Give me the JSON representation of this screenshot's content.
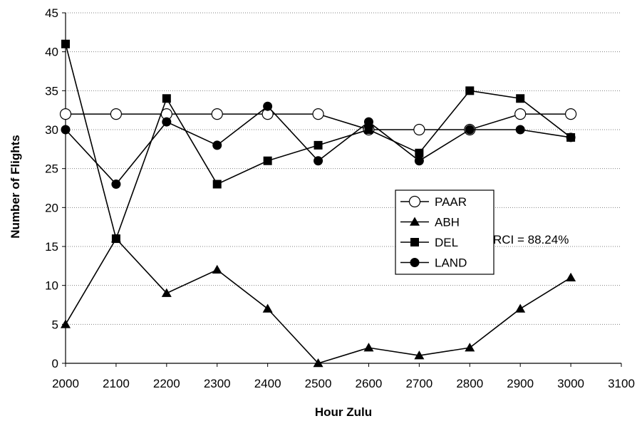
{
  "chart_data": {
    "type": "line",
    "title": "",
    "xlabel": "Hour Zulu",
    "ylabel": "Number of Flights",
    "xlim": [
      2000,
      3100
    ],
    "ylim": [
      0,
      45
    ],
    "xticks": [
      2000,
      2100,
      2200,
      2300,
      2400,
      2500,
      2600,
      2700,
      2800,
      2900,
      3000,
      3100
    ],
    "yticks": [
      0,
      5,
      10,
      15,
      20,
      25,
      30,
      35,
      40,
      45
    ],
    "grid": "horizontal dotted",
    "legend_placement": "center-right",
    "x": [
      2000,
      2100,
      2200,
      2300,
      2400,
      2500,
      2600,
      2700,
      2800,
      2900,
      3000
    ],
    "series": [
      {
        "name": "PAAR",
        "marker": "open-circle",
        "values": [
          32,
          32,
          32,
          32,
          32,
          32,
          30,
          30,
          30,
          32,
          32
        ]
      },
      {
        "name": "ABH",
        "marker": "triangle",
        "values": [
          5,
          16,
          9,
          12,
          7,
          0,
          2,
          1,
          2,
          7,
          11
        ]
      },
      {
        "name": "DEL",
        "marker": "square",
        "values": [
          41,
          16,
          34,
          23,
          26,
          28,
          30,
          27,
          35,
          34,
          29
        ]
      },
      {
        "name": "LAND",
        "marker": "filled-circle",
        "values": [
          30,
          23,
          31,
          28,
          33,
          26,
          31,
          26,
          30,
          30,
          29
        ]
      }
    ],
    "annotations": [
      "RCI = 88.24%"
    ]
  }
}
